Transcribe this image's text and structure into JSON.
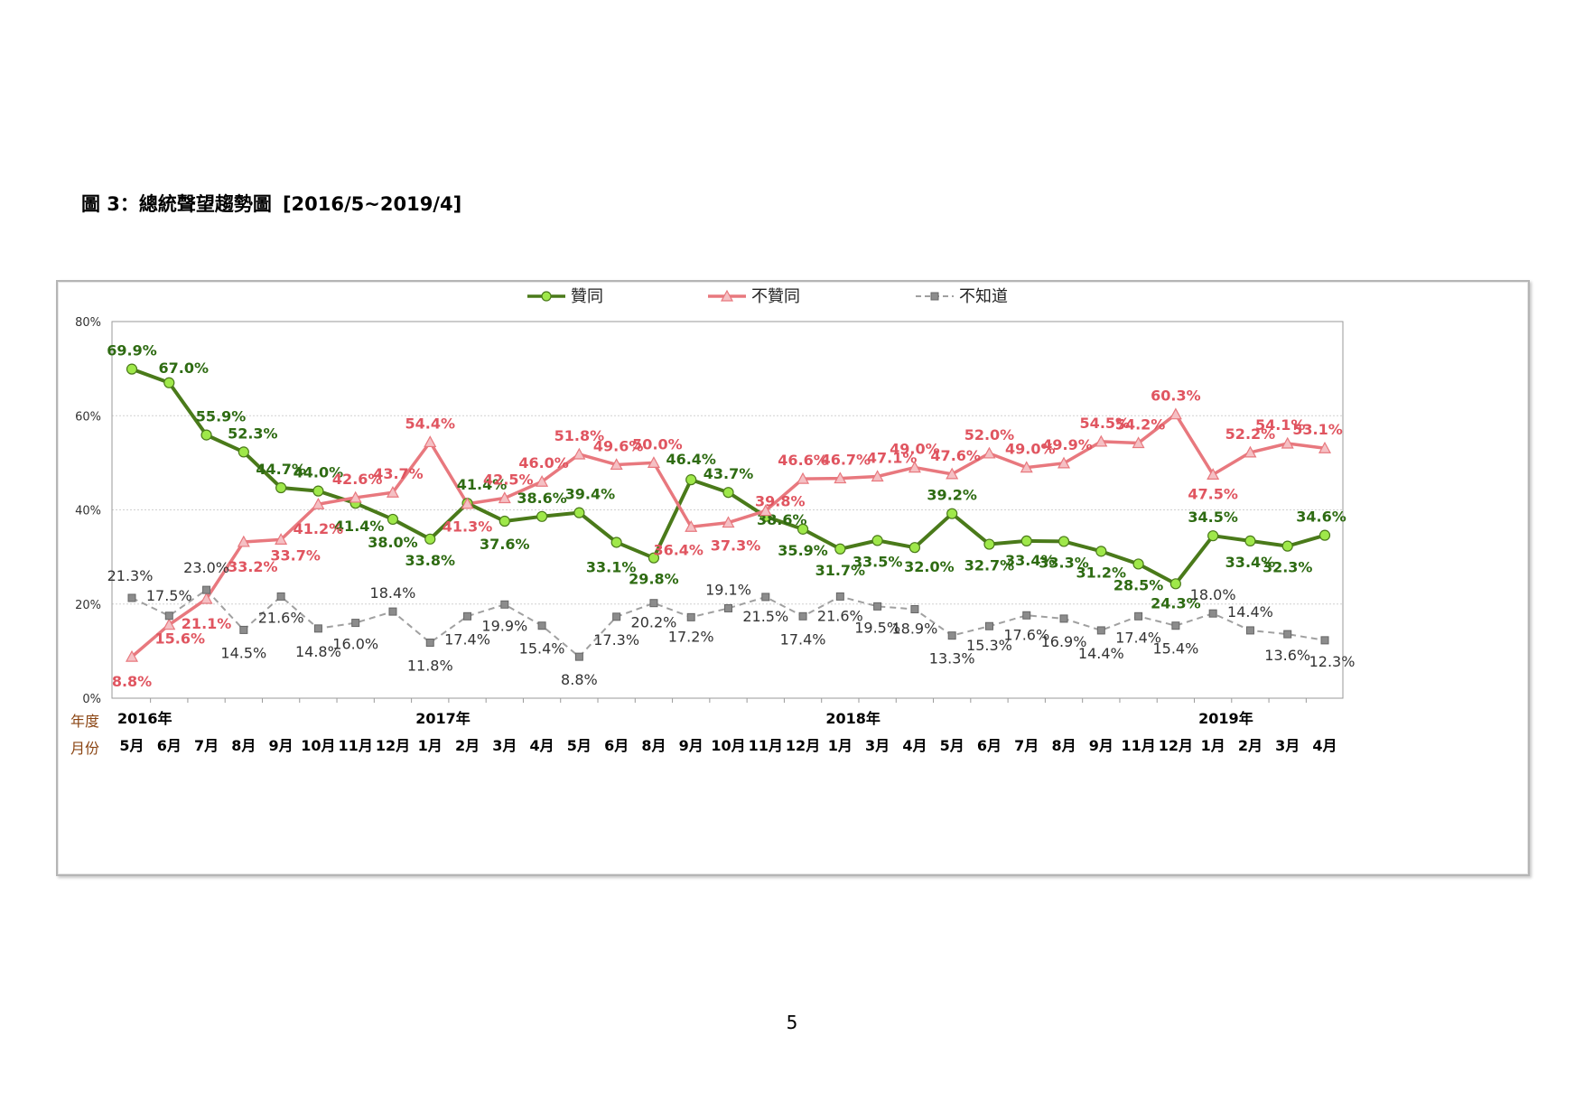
{
  "document": {
    "caption": "圖 3：總統聲望趨勢圖",
    "caption_range": "[2016/5~2019/4]",
    "page_number": "5"
  },
  "chart_data": {
    "type": "line",
    "categories": [
      "5月",
      "6月",
      "7月",
      "8月",
      "9月",
      "10月",
      "11月",
      "12月",
      "1月",
      "2月",
      "3月",
      "4月",
      "5月",
      "6月",
      "8月",
      "9月",
      "10月",
      "11月",
      "12月",
      "1月",
      "3月",
      "4月",
      "5月",
      "6月",
      "7月",
      "8月",
      "9月",
      "11月",
      "12月",
      "1月",
      "2月",
      "3月",
      "4月"
    ],
    "year_ticks": [
      {
        "label": "2016年",
        "index": 0
      },
      {
        "label": "2017年",
        "index": 8
      },
      {
        "label": "2018年",
        "index": 19
      },
      {
        "label": "2019年",
        "index": 29
      }
    ],
    "row_labels": {
      "year": "年度",
      "month": "月份"
    },
    "ylim": [
      0,
      80
    ],
    "yticks": [
      "0%",
      "20%",
      "40%",
      "60%",
      "80%"
    ],
    "legend_position": "top",
    "grid": true,
    "series": [
      {
        "name": "贊同",
        "color": "#4a7a1a",
        "marker": "circle",
        "marker_fill": "#9fe84a",
        "values": [
          69.9,
          67.0,
          55.9,
          52.3,
          44.7,
          44.0,
          41.4,
          38.0,
          33.8,
          41.4,
          37.6,
          38.6,
          39.4,
          33.1,
          29.8,
          46.4,
          43.7,
          38.6,
          35.9,
          31.7,
          33.5,
          32.0,
          39.2,
          32.7,
          33.4,
          33.3,
          31.2,
          28.5,
          24.3,
          34.5,
          33.4,
          32.3,
          34.6
        ],
        "labels": [
          "69.9%",
          "67.0%",
          "55.9%",
          "52.3%",
          "44.7%",
          "44.0%",
          "41.4%",
          "38.0%",
          "33.8%",
          "41.4%",
          "37.6%",
          "38.6%",
          "39.4%",
          "33.1%",
          "29.8%",
          "46.4%",
          "43.7%",
          "38.6%",
          "35.9%",
          "31.7%",
          "33.5%",
          "32.0%",
          "39.2%",
          "32.7%",
          "33.4%",
          "33.3%",
          "31.2%",
          "28.5%",
          "24.3%",
          "34.5%",
          "33.4%",
          "32.3%",
          "34.6%"
        ]
      },
      {
        "name": "不贊同",
        "color": "#e8787e",
        "marker": "triangle",
        "marker_fill": "#f5c0c4",
        "values": [
          8.8,
          15.6,
          21.1,
          33.2,
          33.7,
          41.2,
          42.6,
          43.7,
          54.4,
          41.3,
          42.5,
          46.0,
          51.8,
          49.6,
          50.0,
          36.4,
          37.3,
          39.8,
          46.6,
          46.7,
          47.1,
          49.0,
          47.6,
          52.0,
          49.0,
          49.9,
          54.5,
          54.2,
          60.3,
          47.5,
          52.2,
          54.1,
          53.1
        ],
        "labels": [
          "8.8%",
          "15.6%",
          "21.1%",
          "33.2%",
          "33.7%",
          "41.2%",
          "42.6%",
          "43.7%",
          "54.4%",
          "41.3%",
          "42.5%",
          "46.0%",
          "51.8%",
          "49.6%",
          "50.0%",
          "36.4%",
          "37.3%",
          "39.8%",
          "46.6%",
          "46.7%",
          "47.1%",
          "49.0%",
          "47.6%",
          "52.0%",
          "49.0%",
          "49.9%",
          "54.5%",
          "54.2%",
          "60.3%",
          "47.5%",
          "52.2%",
          "54.1%",
          "53.1%"
        ]
      },
      {
        "name": "不知道",
        "color": "#a0a0a0",
        "marker": "square",
        "marker_fill": "#8c8c8c",
        "dashed": true,
        "values": [
          21.3,
          17.5,
          23.0,
          14.5,
          21.6,
          14.8,
          16.0,
          18.4,
          11.8,
          17.4,
          19.9,
          15.4,
          8.8,
          17.3,
          20.2,
          17.2,
          19.1,
          21.5,
          17.4,
          21.6,
          19.5,
          18.9,
          13.3,
          15.3,
          17.6,
          16.9,
          14.4,
          17.4,
          15.4,
          18.0,
          14.4,
          13.6,
          12.3
        ],
        "labels": [
          "21.3%",
          "17.5%",
          "23.0%",
          "14.5%",
          "21.6%",
          "14.8%",
          "16.0%",
          "18.4%",
          "11.8%",
          "17.4%",
          "19.9%",
          "15.4%",
          "8.8%",
          "17.3%",
          "20.2%",
          "17.2%",
          "19.1%",
          "21.5%",
          "17.4%",
          "21.6%",
          "19.5%",
          "18.9%",
          "13.3%",
          "15.3%",
          "17.6%",
          "16.9%",
          "14.4%",
          "17.4%",
          "15.4%",
          "18.0%",
          "14.4%",
          "13.6%",
          "12.3%"
        ]
      }
    ]
  }
}
